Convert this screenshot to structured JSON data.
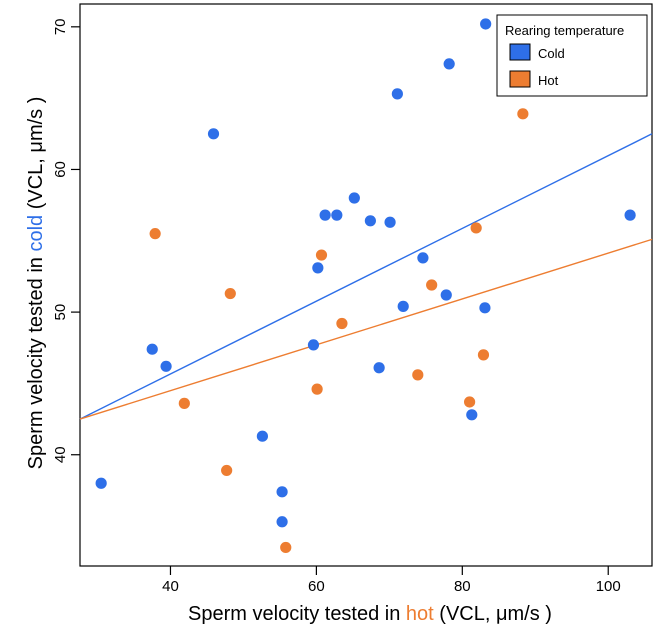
{
  "chart_data": {
    "type": "scatter",
    "xlabel": {
      "prefix": "Sperm velocity tested in ",
      "highlight": "hot",
      "suffix": " (VCL, μm/s )",
      "highlight_color": "#ED7D31"
    },
    "ylabel": {
      "prefix": "Sperm velocity tested in ",
      "highlight": "cold",
      "suffix": " (VCL, μm/s )",
      "highlight_color": "#2E6FE8"
    },
    "xlim": [
      27.6,
      106.0
    ],
    "ylim": [
      32.2,
      71.6
    ],
    "xticks": [
      40,
      60,
      80,
      100
    ],
    "yticks": [
      40,
      50,
      60,
      70
    ],
    "grid": false,
    "legend": {
      "title": "Rearing temperature",
      "placement": "top-right"
    },
    "series": [
      {
        "name": "Cold",
        "color": "#2E6FE8",
        "points": [
          {
            "x": 30.5,
            "y": 38.0
          },
          {
            "x": 37.5,
            "y": 47.4
          },
          {
            "x": 39.4,
            "y": 46.2
          },
          {
            "x": 45.9,
            "y": 62.5
          },
          {
            "x": 52.6,
            "y": 41.3
          },
          {
            "x": 55.3,
            "y": 37.4
          },
          {
            "x": 55.3,
            "y": 35.3
          },
          {
            "x": 59.6,
            "y": 47.7
          },
          {
            "x": 60.2,
            "y": 53.1
          },
          {
            "x": 61.2,
            "y": 56.8
          },
          {
            "x": 62.8,
            "y": 56.8
          },
          {
            "x": 65.2,
            "y": 58.0
          },
          {
            "x": 67.4,
            "y": 56.4
          },
          {
            "x": 68.6,
            "y": 46.1
          },
          {
            "x": 70.1,
            "y": 56.3
          },
          {
            "x": 71.1,
            "y": 65.3
          },
          {
            "x": 71.9,
            "y": 50.4
          },
          {
            "x": 74.6,
            "y": 53.8
          },
          {
            "x": 77.8,
            "y": 51.2
          },
          {
            "x": 78.2,
            "y": 67.4
          },
          {
            "x": 81.3,
            "y": 42.8
          },
          {
            "x": 83.1,
            "y": 50.3
          },
          {
            "x": 83.2,
            "y": 70.2
          },
          {
            "x": 103.0,
            "y": 56.8
          }
        ],
        "fit": {
          "x": [
            27.6,
            106.0
          ],
          "y": [
            42.5,
            62.5
          ]
        }
      },
      {
        "name": "Hot",
        "color": "#ED7D31",
        "points": [
          {
            "x": 37.9,
            "y": 55.5
          },
          {
            "x": 41.9,
            "y": 43.6
          },
          {
            "x": 47.7,
            "y": 38.9
          },
          {
            "x": 48.2,
            "y": 51.3
          },
          {
            "x": 55.8,
            "y": 33.5
          },
          {
            "x": 60.1,
            "y": 44.6
          },
          {
            "x": 60.7,
            "y": 54.0
          },
          {
            "x": 63.5,
            "y": 49.2
          },
          {
            "x": 73.9,
            "y": 45.6
          },
          {
            "x": 75.8,
            "y": 51.9
          },
          {
            "x": 81.0,
            "y": 43.7
          },
          {
            "x": 81.9,
            "y": 55.9
          },
          {
            "x": 82.9,
            "y": 47.0
          },
          {
            "x": 88.3,
            "y": 63.9
          }
        ],
        "fit": {
          "x": [
            27.6,
            106.0
          ],
          "y": [
            42.5,
            55.1
          ]
        }
      }
    ]
  }
}
